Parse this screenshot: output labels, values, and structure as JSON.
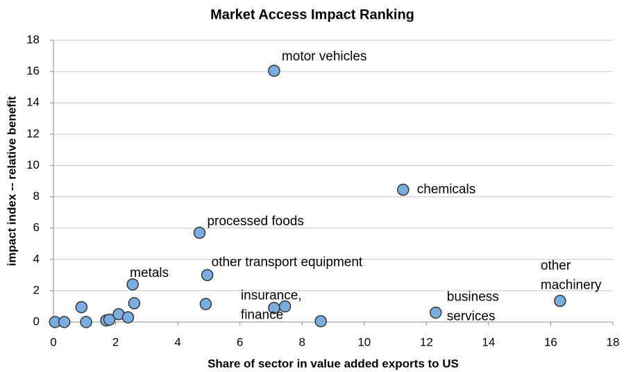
{
  "chart_data": {
    "type": "scatter",
    "title": "Market Access Impact Ranking",
    "x_label": "Share of sector in value added exports to US",
    "y_label": "impact index -- relative benefit",
    "x": [
      0.05,
      0.35,
      0.9,
      1.05,
      1.7,
      1.8,
      2.1,
      2.4,
      2.55,
      2.6,
      4.7,
      4.9,
      4.95,
      7.1,
      7.1,
      7.45,
      8.6,
      11.25,
      12.3,
      16.3
    ],
    "y": [
      0,
      0,
      0.95,
      0,
      0.1,
      0.15,
      0.5,
      0.3,
      2.4,
      1.2,
      5.7,
      1.15,
      3.0,
      16.05,
      0.9,
      1.0,
      0.05,
      8.45,
      0.6,
      1.35
    ],
    "point_labels": [
      null,
      null,
      null,
      null,
      null,
      null,
      null,
      null,
      [
        "metals"
      ],
      null,
      [
        "processed foods"
      ],
      null,
      [
        "other transport equipment"
      ],
      [
        "motor vehicles"
      ],
      [
        "insurance,",
        "finance"
      ],
      null,
      null,
      [
        "chemicals"
      ],
      [
        "business",
        "services"
      ],
      [
        "other",
        "machinery"
      ]
    ],
    "color": "#7aaee0",
    "xlim": [
      0,
      18
    ],
    "xticks": [
      0,
      2,
      4,
      6,
      8,
      10,
      12,
      14,
      16,
      18
    ],
    "ylim": [
      0,
      18
    ],
    "yticks": [
      0,
      2,
      4,
      6,
      8,
      10,
      12,
      14,
      16,
      18
    ],
    "grid": true
  }
}
